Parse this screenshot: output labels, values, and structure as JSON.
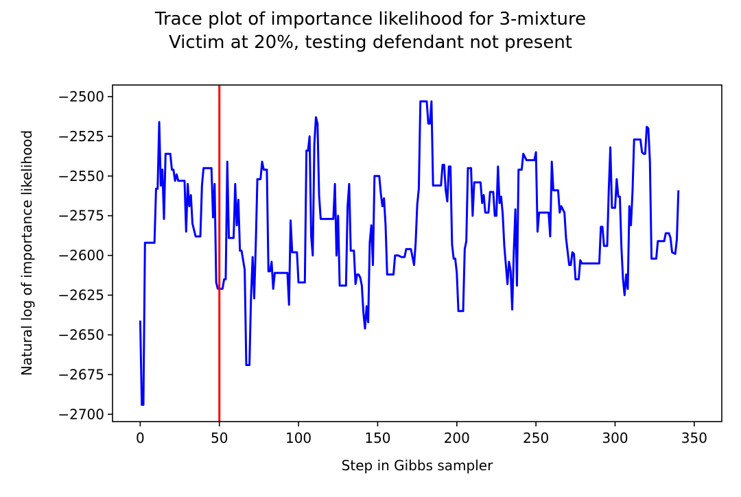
{
  "chart_data": {
    "type": "line",
    "title_lines": [
      "Trace plot of importance likelihood for 3-mixture",
      "Victim at 20%, testing defendant not present"
    ],
    "xlabel": "Step in Gibbs sampler",
    "ylabel": "Natural log of importance likelihood",
    "xlim": [
      -17.5,
      367.4
    ],
    "ylim": [
      -2704.6,
      -2492.7
    ],
    "xticks": [
      0,
      50,
      100,
      150,
      200,
      250,
      300,
      350
    ],
    "xtick_labels": [
      "0",
      "50",
      "100",
      "150",
      "200",
      "250",
      "300",
      "350"
    ],
    "yticks": [
      -2500,
      -2525,
      -2550,
      -2575,
      -2600,
      -2625,
      -2650,
      -2675,
      -2700
    ],
    "ytick_labels": [
      "−2500",
      "−2525",
      "−2550",
      "−2575",
      "−2600",
      "−2625",
      "−2650",
      "−2675",
      "−2700"
    ],
    "grid": false,
    "vline": {
      "x": 50,
      "color": "#ff0000"
    },
    "series": [
      {
        "color": "#0000ff",
        "points": [
          [
            0,
            -2641
          ],
          [
            1,
            -2694
          ],
          [
            2,
            -2694
          ],
          [
            3,
            -2592
          ],
          [
            6,
            -2592
          ],
          [
            9,
            -2592
          ],
          [
            10,
            -2558
          ],
          [
            11,
            -2558
          ],
          [
            12,
            -2516
          ],
          [
            13,
            -2556
          ],
          [
            14,
            -2546
          ],
          [
            15,
            -2577
          ],
          [
            16,
            -2536
          ],
          [
            19,
            -2536
          ],
          [
            20,
            -2546
          ],
          [
            21,
            -2546
          ],
          [
            22,
            -2553
          ],
          [
            23,
            -2549
          ],
          [
            24,
            -2553
          ],
          [
            28,
            -2553
          ],
          [
            29,
            -2585
          ],
          [
            30,
            -2555
          ],
          [
            31,
            -2569
          ],
          [
            32,
            -2562
          ],
          [
            33,
            -2580
          ],
          [
            35,
            -2588
          ],
          [
            38,
            -2588
          ],
          [
            39,
            -2556
          ],
          [
            40,
            -2545
          ],
          [
            45,
            -2545
          ],
          [
            46,
            -2576
          ],
          [
            47,
            -2555
          ],
          [
            48,
            -2617
          ],
          [
            49,
            -2621
          ],
          [
            50,
            -2621
          ],
          [
            52,
            -2621
          ],
          [
            53,
            -2615
          ],
          [
            54,
            -2615
          ],
          [
            55,
            -2541
          ],
          [
            56,
            -2589
          ],
          [
            59,
            -2589
          ],
          [
            60,
            -2555
          ],
          [
            61,
            -2581
          ],
          [
            62,
            -2565
          ],
          [
            63,
            -2597
          ],
          [
            64,
            -2597
          ],
          [
            66,
            -2609
          ],
          [
            67,
            -2669
          ],
          [
            69,
            -2669
          ],
          [
            70,
            -2626
          ],
          [
            71,
            -2601
          ],
          [
            72,
            -2627
          ],
          [
            73,
            -2593
          ],
          [
            74,
            -2552
          ],
          [
            76,
            -2552
          ],
          [
            77,
            -2541
          ],
          [
            78,
            -2546
          ],
          [
            80,
            -2546
          ],
          [
            81,
            -2610
          ],
          [
            82,
            -2610
          ],
          [
            83,
            -2604
          ],
          [
            84,
            -2621
          ],
          [
            85,
            -2611
          ],
          [
            93,
            -2611
          ],
          [
            94,
            -2631
          ],
          [
            95,
            -2578
          ],
          [
            96,
            -2598
          ],
          [
            99,
            -2598
          ],
          [
            100,
            -2617
          ],
          [
            104,
            -2617
          ],
          [
            105,
            -2534
          ],
          [
            106,
            -2534
          ],
          [
            107,
            -2525
          ],
          [
            108,
            -2588
          ],
          [
            109,
            -2600
          ],
          [
            110,
            -2530
          ],
          [
            111,
            -2513
          ],
          [
            112,
            -2517
          ],
          [
            113,
            -2562
          ],
          [
            114,
            -2577
          ],
          [
            122,
            -2577
          ],
          [
            123,
            -2555
          ],
          [
            124,
            -2600
          ],
          [
            125,
            -2575
          ],
          [
            126,
            -2619
          ],
          [
            130,
            -2619
          ],
          [
            131,
            -2569
          ],
          [
            132,
            -2555
          ],
          [
            133,
            -2597
          ],
          [
            135,
            -2597
          ],
          [
            136,
            -2618
          ],
          [
            137,
            -2612
          ],
          [
            138,
            -2612
          ],
          [
            139,
            -2614
          ],
          [
            140,
            -2619
          ],
          [
            141,
            -2636
          ],
          [
            142,
            -2646
          ],
          [
            143,
            -2632
          ],
          [
            144,
            -2642
          ],
          [
            145,
            -2592
          ],
          [
            146,
            -2581
          ],
          [
            147,
            -2606
          ],
          [
            148,
            -2550
          ],
          [
            151,
            -2550
          ],
          [
            152,
            -2561
          ],
          [
            153,
            -2569
          ],
          [
            154,
            -2564
          ],
          [
            155,
            -2581
          ],
          [
            156,
            -2612
          ],
          [
            160,
            -2612
          ],
          [
            161,
            -2600
          ],
          [
            163,
            -2600
          ],
          [
            165,
            -2601
          ],
          [
            167,
            -2601
          ],
          [
            168,
            -2596
          ],
          [
            171,
            -2596
          ],
          [
            172,
            -2601
          ],
          [
            173,
            -2606
          ],
          [
            174,
            -2592
          ],
          [
            175,
            -2568
          ],
          [
            176,
            -2558
          ],
          [
            177,
            -2503
          ],
          [
            181,
            -2503
          ],
          [
            182,
            -2517
          ],
          [
            183,
            -2517
          ],
          [
            184,
            -2503
          ],
          [
            185,
            -2556
          ],
          [
            190,
            -2556
          ],
          [
            191,
            -2543
          ],
          [
            192,
            -2543
          ],
          [
            193,
            -2559
          ],
          [
            194,
            -2566
          ],
          [
            195,
            -2544
          ],
          [
            196,
            -2544
          ],
          [
            197,
            -2593
          ],
          [
            198,
            -2602
          ],
          [
            199,
            -2602
          ],
          [
            200,
            -2611
          ],
          [
            201,
            -2635
          ],
          [
            204,
            -2635
          ],
          [
            205,
            -2596
          ],
          [
            206,
            -2591
          ],
          [
            207,
            -2545
          ],
          [
            209,
            -2545
          ],
          [
            210,
            -2575
          ],
          [
            211,
            -2554
          ],
          [
            215,
            -2554
          ],
          [
            216,
            -2567
          ],
          [
            217,
            -2562
          ],
          [
            218,
            -2573
          ],
          [
            220,
            -2573
          ],
          [
            221,
            -2560
          ],
          [
            223,
            -2560
          ],
          [
            224,
            -2575
          ],
          [
            225,
            -2575
          ],
          [
            226,
            -2544
          ],
          [
            227,
            -2567
          ],
          [
            228,
            -2563
          ],
          [
            229,
            -2574
          ],
          [
            230,
            -2594
          ],
          [
            232,
            -2618
          ],
          [
            233,
            -2604
          ],
          [
            234,
            -2610
          ],
          [
            235,
            -2634
          ],
          [
            236,
            -2598
          ],
          [
            237,
            -2571
          ],
          [
            238,
            -2619
          ],
          [
            239,
            -2546
          ],
          [
            241,
            -2546
          ],
          [
            242,
            -2536
          ],
          [
            244,
            -2540
          ],
          [
            249,
            -2540
          ],
          [
            250,
            -2535
          ],
          [
            251,
            -2585
          ],
          [
            252,
            -2573
          ],
          [
            258,
            -2573
          ],
          [
            259,
            -2588
          ],
          [
            260,
            -2541
          ],
          [
            261,
            -2559
          ],
          [
            264,
            -2559
          ],
          [
            265,
            -2573
          ],
          [
            266,
            -2569
          ],
          [
            268,
            -2573
          ],
          [
            269,
            -2589
          ],
          [
            271,
            -2606
          ],
          [
            272,
            -2606
          ],
          [
            273,
            -2598
          ],
          [
            274,
            -2599
          ],
          [
            275,
            -2615
          ],
          [
            277,
            -2615
          ],
          [
            278,
            -2603
          ],
          [
            279,
            -2605
          ],
          [
            282,
            -2605
          ],
          [
            284,
            -2605
          ],
          [
            290,
            -2605
          ],
          [
            291,
            -2582
          ],
          [
            292,
            -2582
          ],
          [
            293,
            -2594
          ],
          [
            295,
            -2594
          ],
          [
            296,
            -2559
          ],
          [
            297,
            -2532
          ],
          [
            298,
            -2570
          ],
          [
            300,
            -2570
          ],
          [
            301,
            -2552
          ],
          [
            302,
            -2563
          ],
          [
            303,
            -2563
          ],
          [
            304,
            -2595
          ],
          [
            305,
            -2615
          ],
          [
            306,
            -2625
          ],
          [
            307,
            -2612
          ],
          [
            308,
            -2621
          ],
          [
            309,
            -2569
          ],
          [
            310,
            -2581
          ],
          [
            311,
            -2560
          ],
          [
            312,
            -2527
          ],
          [
            316,
            -2527
          ],
          [
            317,
            -2535
          ],
          [
            318,
            -2536
          ],
          [
            319,
            -2536
          ],
          [
            320,
            -2519
          ],
          [
            321,
            -2520
          ],
          [
            322,
            -2541
          ],
          [
            323,
            -2602
          ],
          [
            326,
            -2602
          ],
          [
            327,
            -2591
          ],
          [
            331,
            -2591
          ],
          [
            332,
            -2586
          ],
          [
            334,
            -2586
          ],
          [
            335,
            -2589
          ],
          [
            336,
            -2598
          ],
          [
            338,
            -2599
          ],
          [
            339,
            -2590
          ],
          [
            340,
            -2559
          ]
        ]
      }
    ]
  }
}
